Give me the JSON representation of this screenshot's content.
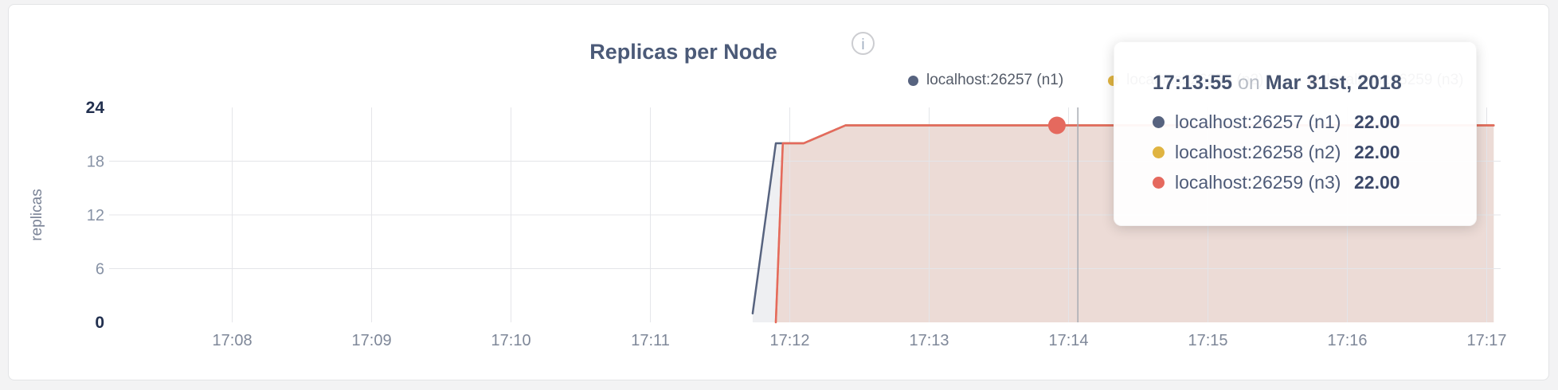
{
  "panel": {
    "title": "Replicas per Node",
    "info_glyph": "i"
  },
  "legend": {
    "items": [
      {
        "label": "localhost:26257 (n1)",
        "color": "#57637f"
      },
      {
        "label": "localhost:26258 (n2)",
        "color": "#e0b441"
      },
      {
        "label": "localhost:26259 (n3)",
        "color": "#e5695e"
      }
    ]
  },
  "tooltip": {
    "time": "17:13:55",
    "conjunction": "on",
    "date": "Mar 31st, 2018",
    "rows": [
      {
        "label": "localhost:26257 (n1)",
        "value": "22.00",
        "color": "#57637f"
      },
      {
        "label": "localhost:26258 (n2)",
        "value": "22.00",
        "color": "#e0b441"
      },
      {
        "label": "localhost:26259 (n3)",
        "value": "22.00",
        "color": "#e5695e"
      }
    ]
  },
  "chart_data": {
    "type": "area",
    "title": "Replicas per Node",
    "xlabel": "",
    "ylabel": "replicas",
    "x_ticks": [
      "17:08",
      "17:09",
      "17:10",
      "17:11",
      "17:12",
      "17:13",
      "17:14",
      "17:15",
      "17:16",
      "17:17"
    ],
    "y_ticks": [
      0,
      6,
      12,
      18,
      24
    ],
    "ylim": [
      0,
      24
    ],
    "grid": true,
    "legend_position": "top-right",
    "series": [
      {
        "name": "localhost:26257 (n1)",
        "color": "#57637f",
        "fill_opacity": 0.1,
        "points": [
          [
            "17:11:44",
            1
          ],
          [
            "17:11:54",
            20
          ],
          [
            "17:12:06",
            20
          ],
          [
            "17:12:24",
            22
          ],
          [
            "17:17:03",
            22
          ]
        ]
      },
      {
        "name": "localhost:26258 (n2)",
        "color": "#e0b441",
        "fill_opacity": 0.06,
        "points": [
          [
            "17:11:54",
            0
          ],
          [
            "17:11:57",
            20
          ],
          [
            "17:12:06",
            20
          ],
          [
            "17:12:24",
            22
          ],
          [
            "17:17:03",
            22
          ]
        ]
      },
      {
        "name": "localhost:26259 (n3)",
        "color": "#e5695e",
        "fill_opacity": 0.12,
        "points": [
          [
            "17:11:54",
            0
          ],
          [
            "17:11:57",
            20
          ],
          [
            "17:12:06",
            20
          ],
          [
            "17:12:24",
            22
          ],
          [
            "17:17:03",
            22
          ]
        ]
      }
    ],
    "hover": {
      "snap_time": "17:13:55",
      "snap_value": 22,
      "snap_series": "localhost:26259 (n3)",
      "guideline_time": "17:14:04"
    }
  }
}
